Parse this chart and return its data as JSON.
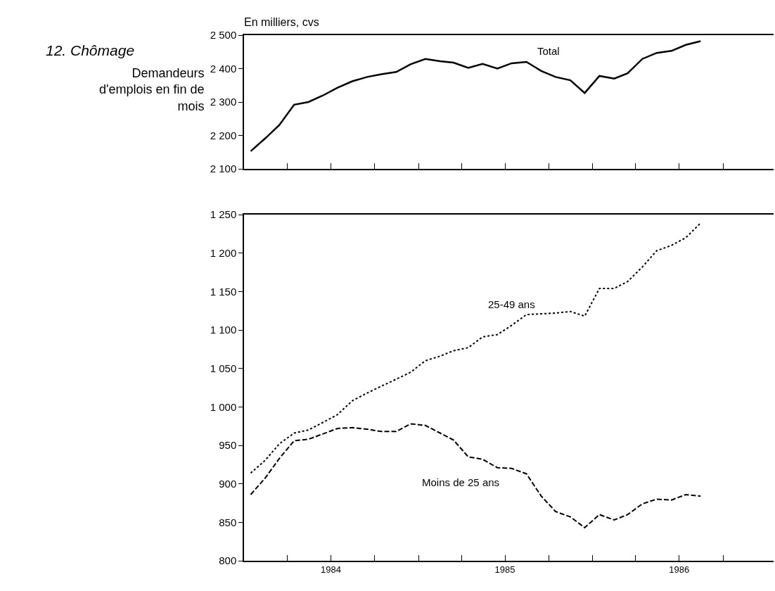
{
  "chart_data": [
    {
      "type": "line",
      "title": "12. Chômage",
      "subtitle": "Demandeurs d'emplois en fin de mois",
      "ylabel": "En milliers, cvs",
      "tick_labels": "y",
      "marker": "none",
      "x": [
        "1984-01-15",
        "1984-02-15",
        "1984-03-15",
        "1984-04-15",
        "1984-05-15",
        "1984-06-15",
        "1984-07-15",
        "1984-08-15",
        "1984-09-15",
        "1984-10-15",
        "1984-11-15",
        "1984-12-15",
        "1985-01-15",
        "1985-02-15",
        "1985-03-15",
        "1985-04-15",
        "1985-05-15",
        "1985-06-15",
        "1985-07-15",
        "1985-08-15",
        "1985-09-15",
        "1985-10-15",
        "1985-11-15",
        "1985-12-15",
        "1986-01-15",
        "1986-02-15",
        "1986-03-15",
        "1986-04-15",
        "1986-05-15",
        "1986-06-15",
        "1986-07-15",
        "1986-08-15"
      ],
      "xlim": [
        "1984-01-01",
        "1987-01-15"
      ],
      "xticks": [
        {
          "value": "1984-04-01",
          "label": null
        },
        {
          "value": "1984-07-01",
          "label": null
        },
        {
          "value": "1984-10-01",
          "label": null
        },
        {
          "value": "1985-01-01",
          "label": null
        },
        {
          "value": "1985-04-01",
          "label": null
        },
        {
          "value": "1985-07-01",
          "label": null
        },
        {
          "value": "1985-10-01",
          "label": null
        },
        {
          "value": "1986-01-01",
          "label": null
        },
        {
          "value": "1986-04-01",
          "label": null
        },
        {
          "value": "1986-07-01",
          "label": null
        },
        {
          "value": "1986-10-01",
          "label": null
        }
      ],
      "ylim": [
        2100,
        2500
      ],
      "yticks": [
        {
          "value": 2100,
          "label": "2 100"
        },
        {
          "value": 2200,
          "label": "2 200"
        },
        {
          "value": 2300,
          "label": "2 300"
        },
        {
          "value": 2400,
          "label": "2 400"
        },
        {
          "value": 2500,
          "label": "2 500"
        }
      ],
      "series": [
        {
          "name": "Total",
          "color": "#000000",
          "line_style": "solid",
          "values": [
            2153,
            2192,
            2231,
            2292,
            2300,
            2320,
            2343,
            2362,
            2375,
            2383,
            2390,
            2413,
            2429,
            2422,
            2418,
            2402,
            2414,
            2400,
            2416,
            2420,
            2393,
            2375,
            2365,
            2327,
            2378,
            2370,
            2386,
            2429,
            2447,
            2453,
            2471,
            2482
          ]
        }
      ]
    },
    {
      "type": "line",
      "marker": "none",
      "x": [
        "1984-01-15",
        "1984-02-15",
        "1984-03-15",
        "1984-04-15",
        "1984-05-15",
        "1984-06-15",
        "1984-07-15",
        "1984-08-15",
        "1984-09-15",
        "1984-10-15",
        "1984-11-15",
        "1984-12-15",
        "1985-01-15",
        "1985-02-15",
        "1985-03-15",
        "1985-04-15",
        "1985-05-15",
        "1985-06-15",
        "1985-07-15",
        "1985-08-15",
        "1985-09-15",
        "1985-10-15",
        "1985-11-15",
        "1985-12-15",
        "1986-01-15",
        "1986-02-15",
        "1986-03-15",
        "1986-04-15",
        "1986-05-15",
        "1986-06-15",
        "1986-07-15",
        "1986-08-15"
      ],
      "xlim": [
        "1984-01-01",
        "1987-01-15"
      ],
      "xticks": [
        {
          "value": "1984-04-01",
          "label": null
        },
        {
          "value": "1984-07-01",
          "label": "1984"
        },
        {
          "value": "1984-10-01",
          "label": null
        },
        {
          "value": "1985-01-01",
          "label": null
        },
        {
          "value": "1985-04-01",
          "label": null
        },
        {
          "value": "1985-07-01",
          "label": "1985"
        },
        {
          "value": "1985-10-01",
          "label": null
        },
        {
          "value": "1986-01-01",
          "label": null
        },
        {
          "value": "1986-04-01",
          "label": null
        },
        {
          "value": "1986-07-01",
          "label": "1986"
        },
        {
          "value": "1986-10-01",
          "label": null
        }
      ],
      "ylim": [
        800,
        1250
      ],
      "yticks": [
        {
          "value": 800,
          "label": "800"
        },
        {
          "value": 850,
          "label": "850"
        },
        {
          "value": 900,
          "label": "900"
        },
        {
          "value": 950,
          "label": "950"
        },
        {
          "value": 1000,
          "label": "1 000"
        },
        {
          "value": 1050,
          "label": "1 050"
        },
        {
          "value": 1100,
          "label": "1 100"
        },
        {
          "value": 1150,
          "label": "1 150"
        },
        {
          "value": 1200,
          "label": "1 200"
        },
        {
          "value": 1250,
          "label": "1 250"
        }
      ],
      "series": [
        {
          "name": "25-49 ans",
          "color": "#000000",
          "line_style": "dotted",
          "values": [
            914,
            931,
            952,
            966,
            970,
            980,
            990,
            1008,
            1018,
            1027,
            1036,
            1045,
            1060,
            1066,
            1073,
            1077,
            1091,
            1094,
            1106,
            1120,
            1121,
            1122,
            1124,
            1118,
            1154,
            1154,
            1163,
            1182,
            1203,
            1210,
            1220,
            1239
          ]
        },
        {
          "name": "Moins de 25 ans",
          "color": "#000000",
          "line_style": "dashed",
          "values": [
            886,
            908,
            933,
            956,
            958,
            965,
            972,
            973,
            971,
            968,
            968,
            978,
            976,
            966,
            957,
            935,
            932,
            921,
            920,
            913,
            884,
            864,
            857,
            843,
            860,
            853,
            860,
            874,
            880,
            879,
            886,
            884
          ]
        }
      ]
    }
  ]
}
